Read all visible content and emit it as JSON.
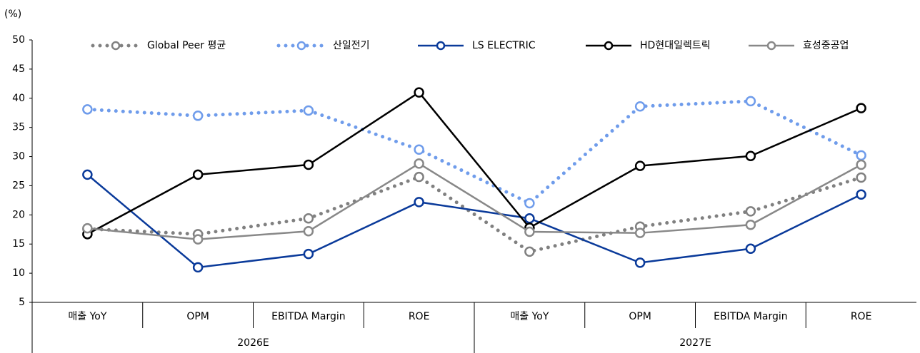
{
  "chart_data": {
    "type": "line",
    "y_unit": "(%)",
    "categories": [
      "매출 YoY",
      "OPM",
      "EBITDA Margin",
      "ROE",
      "매출 YoY",
      "OPM",
      "EBITDA Margin",
      "ROE"
    ],
    "x_groups": [
      "2026E",
      "2027E"
    ],
    "ylim": [
      5,
      50
    ],
    "yticks": [
      5,
      10,
      15,
      20,
      25,
      30,
      35,
      40,
      45,
      50
    ],
    "grid": false,
    "legend": "top",
    "series": [
      {
        "name": "Global Peer 평균",
        "color": "#808080",
        "style": "dotted",
        "values": [
          17.6,
          16.7,
          19.4,
          26.5,
          13.7,
          18.0,
          20.6,
          26.4
        ]
      },
      {
        "name": "산일전기",
        "color": "#6f9ceb",
        "style": "dotted",
        "values": [
          38.1,
          37.0,
          37.9,
          31.2,
          22.0,
          38.6,
          39.5,
          30.2
        ]
      },
      {
        "name": "LS ELECTRIC",
        "color": "#0a3a9a",
        "style": "solid",
        "values": [
          26.9,
          11.0,
          13.3,
          22.2,
          19.4,
          11.8,
          14.2,
          23.5
        ]
      },
      {
        "name": "HD현대일렉트릭",
        "color": "#000000",
        "style": "solid",
        "values": [
          16.7,
          26.9,
          28.6,
          41.0,
          17.8,
          28.4,
          30.1,
          38.3
        ]
      },
      {
        "name": "효성중공업",
        "color": "#888888",
        "style": "solid",
        "values": [
          17.7,
          15.8,
          17.2,
          28.8,
          17.1,
          16.9,
          18.3,
          28.6
        ]
      }
    ]
  }
}
